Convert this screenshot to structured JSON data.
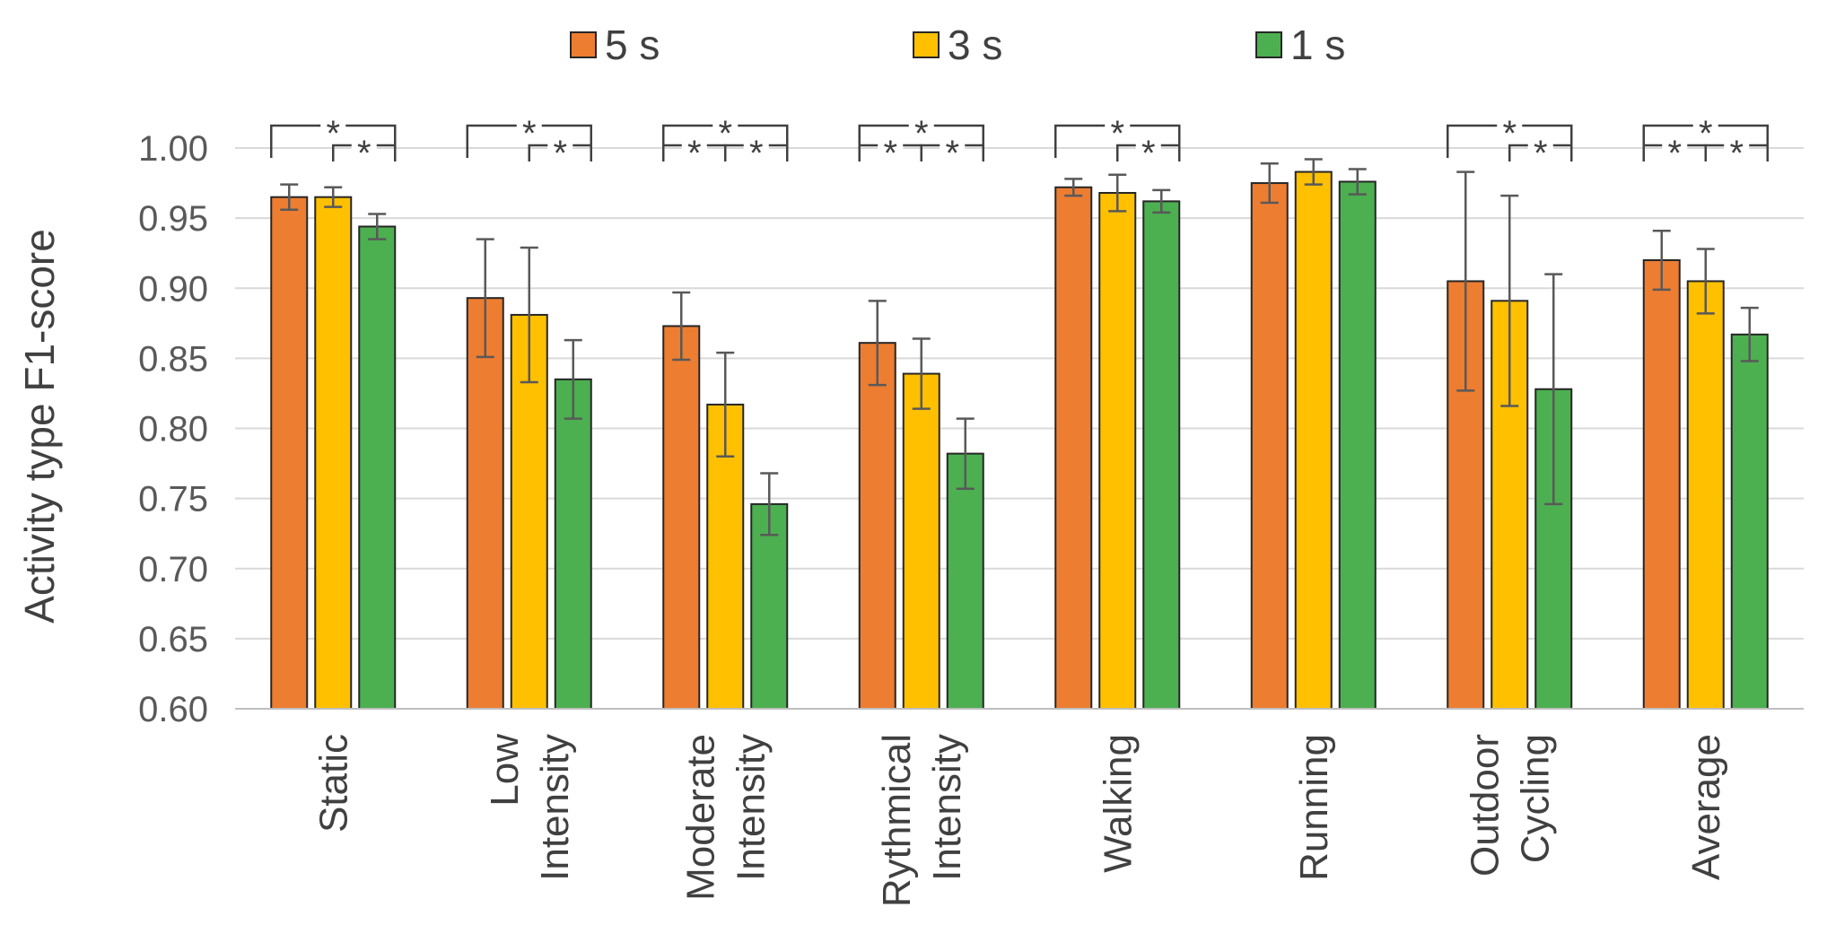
{
  "chart_data": {
    "type": "bar",
    "title": "",
    "xlabel": "",
    "ylabel": "Activity type F1-score",
    "ylim": [
      0.6,
      1.0
    ],
    "yticks": [
      "0.60",
      "0.65",
      "0.70",
      "0.75",
      "0.80",
      "0.85",
      "0.90",
      "0.95",
      "1.00"
    ],
    "grid": true,
    "legend_position": "top",
    "categories": [
      [
        "Static"
      ],
      [
        "Low",
        "Intensity"
      ],
      [
        "Moderate",
        "Intensity"
      ],
      [
        "Rythmical",
        "Intensity"
      ],
      [
        "Walking"
      ],
      [
        "Running"
      ],
      [
        "Outdoor",
        "Cycling"
      ],
      [
        "Average"
      ]
    ],
    "series": [
      {
        "name": "5 s",
        "color": "#ED7D31",
        "values": [
          0.965,
          0.893,
          0.873,
          0.861,
          0.972,
          0.975,
          0.905,
          0.92
        ],
        "errors": [
          0.009,
          0.042,
          0.024,
          0.03,
          0.006,
          0.014,
          0.078,
          0.021
        ]
      },
      {
        "name": "3 s",
        "color": "#FFC000",
        "values": [
          0.965,
          0.881,
          0.817,
          0.839,
          0.968,
          0.983,
          0.891,
          0.905
        ],
        "errors": [
          0.007,
          0.048,
          0.037,
          0.025,
          0.013,
          0.009,
          0.075,
          0.023
        ]
      },
      {
        "name": "1 s",
        "color": "#4CAF50",
        "values": [
          0.944,
          0.835,
          0.746,
          0.782,
          0.962,
          0.976,
          0.828,
          0.867
        ],
        "errors": [
          0.009,
          0.028,
          0.022,
          0.025,
          0.008,
          0.009,
          0.082,
          0.019
        ]
      }
    ],
    "significance": [
      {
        "category": 0,
        "pairs": [
          [
            0,
            2
          ],
          [
            1,
            2
          ]
        ],
        "label": "*"
      },
      {
        "category": 1,
        "pairs": [
          [
            0,
            2
          ],
          [
            1,
            2
          ]
        ],
        "label": "*"
      },
      {
        "category": 2,
        "pairs": [
          [
            0,
            2
          ],
          [
            0,
            1
          ],
          [
            1,
            2
          ]
        ],
        "label": "*"
      },
      {
        "category": 3,
        "pairs": [
          [
            0,
            2
          ],
          [
            0,
            1
          ],
          [
            1,
            2
          ]
        ],
        "label": "*"
      },
      {
        "category": 4,
        "pairs": [
          [
            0,
            2
          ],
          [
            1,
            2
          ]
        ],
        "label": "*"
      },
      {
        "category": 6,
        "pairs": [
          [
            0,
            2
          ],
          [
            1,
            2
          ]
        ],
        "label": "*"
      },
      {
        "category": 7,
        "pairs": [
          [
            0,
            2
          ],
          [
            0,
            1
          ],
          [
            1,
            2
          ]
        ],
        "label": "*"
      }
    ]
  }
}
